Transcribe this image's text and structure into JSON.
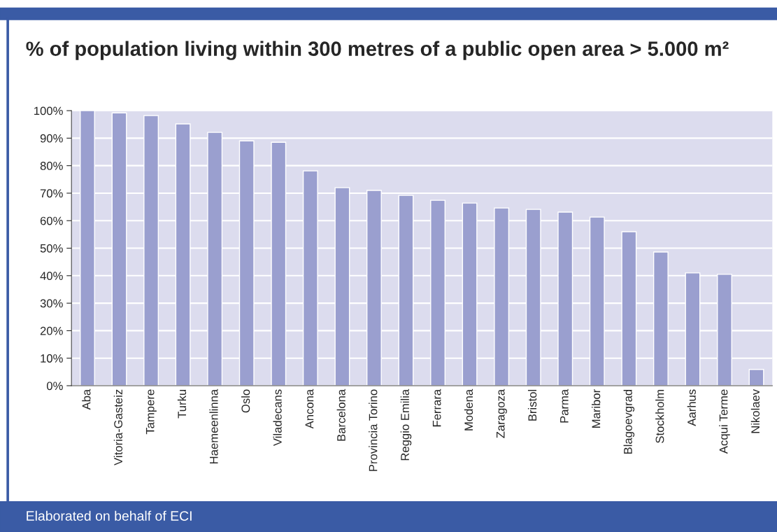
{
  "chart_data": {
    "type": "bar",
    "title": "% of population living within 300 metres of a public open area > 5.000 m²",
    "categories": [
      "Aba",
      "Vitoria-Gasteiz",
      "Tampere",
      "Turku",
      "Haemeenlinna",
      "Oslo",
      "Viladecans",
      "Ancona",
      "Barcelona",
      "Provincia Torino",
      "Reggio Emilia",
      "Ferrara",
      "Modena",
      "Zaragoza",
      "Bristol",
      "Parma",
      "Maribor",
      "Blagoevgrad",
      "Stockholm",
      "Aarhus",
      "Acqui Terme",
      "Nikolaev"
    ],
    "values": [
      100,
      99.2,
      98.2,
      95.2,
      92.1,
      89,
      88.5,
      78.1,
      72,
      71,
      69.2,
      67.4,
      66.4,
      64.6,
      64.1,
      63.1,
      61.3,
      56,
      48.6,
      41,
      40.5,
      5.9
    ],
    "color": "#9a9fcf",
    "ylim": [
      0,
      100
    ],
    "yticks": [
      {
        "value": 0,
        "label": "0%"
      },
      {
        "value": 10,
        "label": "10%"
      },
      {
        "value": 20,
        "label": "20%"
      },
      {
        "value": 30,
        "label": "30%"
      },
      {
        "value": 40,
        "label": "40%"
      },
      {
        "value": 50,
        "label": "50%"
      },
      {
        "value": 60,
        "label": "60%"
      },
      {
        "value": 70,
        "label": "70%"
      },
      {
        "value": 80,
        "label": "80%"
      },
      {
        "value": 90,
        "label": "90%"
      },
      {
        "value": 100,
        "label": "100%"
      }
    ],
    "grid": "y",
    "annotations": [
      "Elaborated on behalf of ECI"
    ]
  }
}
